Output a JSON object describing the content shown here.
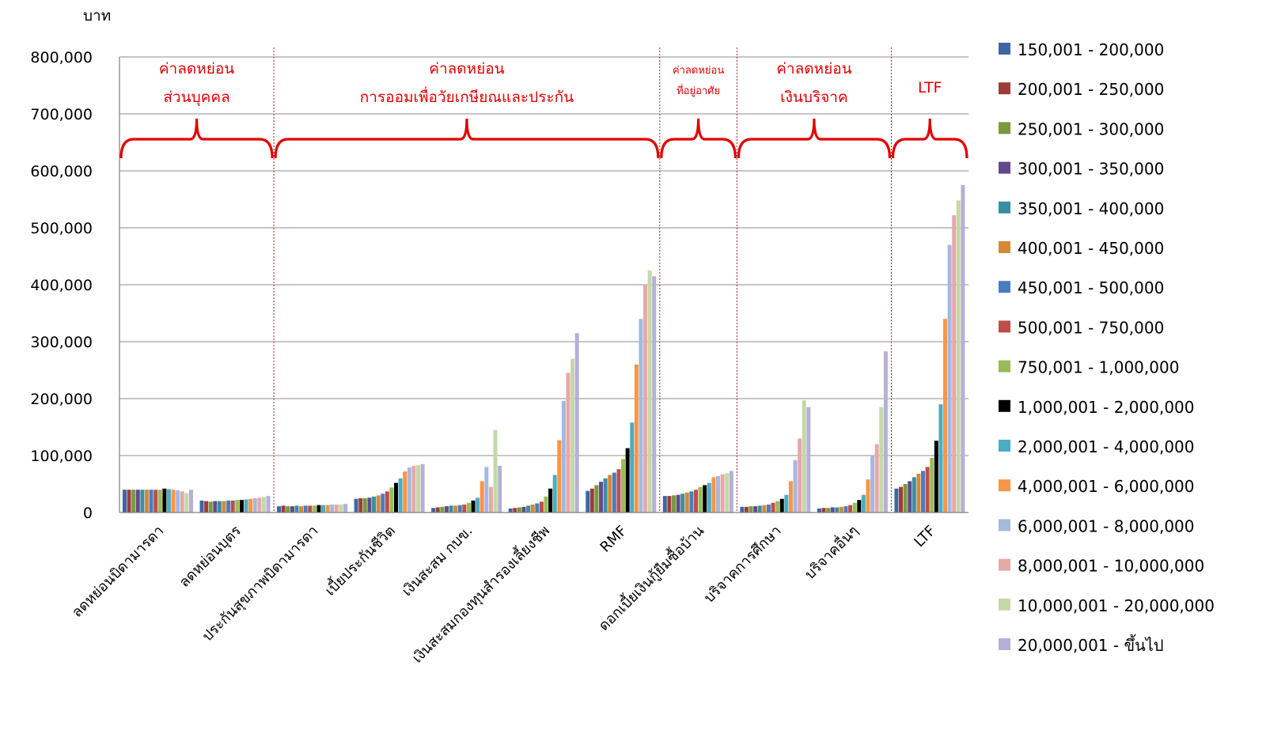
{
  "chart_data": {
    "type": "bar",
    "ylabel": "บาท",
    "ylim": [
      0,
      800000
    ],
    "yticks": [
      "0",
      "100,000",
      "200,000",
      "300,000",
      "400,000",
      "500,000",
      "600,000",
      "700,000",
      "800,000"
    ],
    "grid": true,
    "legend_position": "right",
    "categories": [
      "ลดหย่อนบิดามารดา",
      "ลดหย่อนบุตร",
      "ประกันสุขภาพบิดามารดา",
      "เบี้ยประกันชีวิต",
      "เงินสะสม กบข.",
      "เงินสะสมกองทุนสำรองเลี้ยงชีพ",
      "RMF",
      "ดอกเบี้ยเงินกู้ยืมซื้อบ้าน",
      "บริจาคการศึกษา",
      "บริจาคอื่นๆ",
      "LTF"
    ],
    "groups": [
      {
        "lines": [
          "ค่าลดหย่อน",
          "ส่วนบุคคล"
        ],
        "from": 0,
        "to": 1
      },
      {
        "lines": [
          "ค่าลดหย่อน",
          "การออมเพื่อวัยเกษียณและประกัน"
        ],
        "from": 2,
        "to": 6
      },
      {
        "lines": [
          "ค่าลดหย่อน",
          "ที่อยู่อาศัย"
        ],
        "from": 7,
        "to": 7
      },
      {
        "lines": [
          "ค่าลดหย่อน",
          "เงินบริจาค"
        ],
        "from": 8,
        "to": 9
      },
      {
        "lines": [
          "LTF"
        ],
        "from": 10,
        "to": 10
      }
    ],
    "series": [
      {
        "name": "150,001 - 200,000",
        "color": "#3e66a3",
        "values": [
          40000,
          21000,
          11000,
          24000,
          8000,
          7000,
          38000,
          29000,
          10000,
          7000,
          42000
        ]
      },
      {
        "name": "200,001 - 250,000",
        "color": "#9c3d3a",
        "values": [
          40000,
          20000,
          12000,
          25000,
          9000,
          8000,
          42000,
          29000,
          10000,
          8000,
          45000
        ]
      },
      {
        "name": "250,001 - 300,000",
        "color": "#78993f",
        "values": [
          40000,
          19000,
          11000,
          25000,
          10000,
          9000,
          48000,
          30000,
          11000,
          8000,
          50000
        ]
      },
      {
        "name": "300,001 - 350,000",
        "color": "#604b8a",
        "values": [
          40000,
          20000,
          11000,
          26000,
          11000,
          10000,
          54000,
          31000,
          11000,
          9000,
          55000
        ]
      },
      {
        "name": "350,001 - 400,000",
        "color": "#3a8ea3",
        "values": [
          40000,
          20000,
          12000,
          28000,
          12000,
          12000,
          60000,
          33000,
          12000,
          9000,
          62000
        ]
      },
      {
        "name": "400,001 - 450,000",
        "color": "#d28a36",
        "values": [
          40000,
          20000,
          11000,
          30000,
          12000,
          14000,
          66000,
          35000,
          13000,
          10000,
          68000
        ]
      },
      {
        "name": "450,001 - 500,000",
        "color": "#4a7cc2",
        "values": [
          40000,
          21000,
          12000,
          33000,
          13000,
          16000,
          70000,
          37000,
          14000,
          11000,
          73000
        ]
      },
      {
        "name": "500,001 - 750,000",
        "color": "#bf4d4a",
        "values": [
          40000,
          21000,
          12000,
          37000,
          14000,
          19000,
          76000,
          40000,
          17000,
          13000,
          80000
        ]
      },
      {
        "name": "750,001 - 1,000,000",
        "color": "#9bbb59",
        "values": [
          40000,
          22000,
          12000,
          44000,
          17000,
          28000,
          94000,
          45000,
          20000,
          17000,
          96000
        ]
      },
      {
        "name": "1,000,001 - 2,000,000",
        "color": "#000000",
        "values": [
          42000,
          22000,
          13000,
          52000,
          21000,
          42000,
          113000,
          48000,
          24000,
          22000,
          126000
        ]
      },
      {
        "name": "2,000,001 - 4,000,000",
        "color": "#4bacc6",
        "values": [
          41000,
          23000,
          13000,
          60000,
          26000,
          66000,
          158000,
          52000,
          31000,
          31000,
          190000
        ]
      },
      {
        "name": "4,000,001 - 6,000,000",
        "color": "#f79646",
        "values": [
          40000,
          24000,
          13000,
          72000,
          55000,
          127000,
          260000,
          62000,
          55000,
          58000,
          340000
        ]
      },
      {
        "name": "6,000,001 - 8,000,000",
        "color": "#a5b8e0",
        "values": [
          39000,
          25000,
          14000,
          79000,
          80000,
          196000,
          340000,
          64000,
          92000,
          100000,
          470000
        ]
      },
      {
        "name": "8,000,001 - 10,000,000",
        "color": "#e6a9a8",
        "values": [
          37000,
          26000,
          14000,
          82000,
          45000,
          245000,
          400000,
          67000,
          130000,
          120000,
          522000
        ]
      },
      {
        "name": "10,000,001 - 20,000,000",
        "color": "#c4d8a8",
        "values": [
          34000,
          27000,
          14000,
          83000,
          145000,
          270000,
          425000,
          69000,
          197000,
          185000,
          548000
        ]
      },
      {
        "name": "20,000,001 - ขึ้นไป",
        "color": "#b6b0d6",
        "values": [
          40000,
          29000,
          15000,
          85000,
          82000,
          315000,
          415000,
          73000,
          185000,
          283000,
          575000
        ]
      }
    ]
  }
}
